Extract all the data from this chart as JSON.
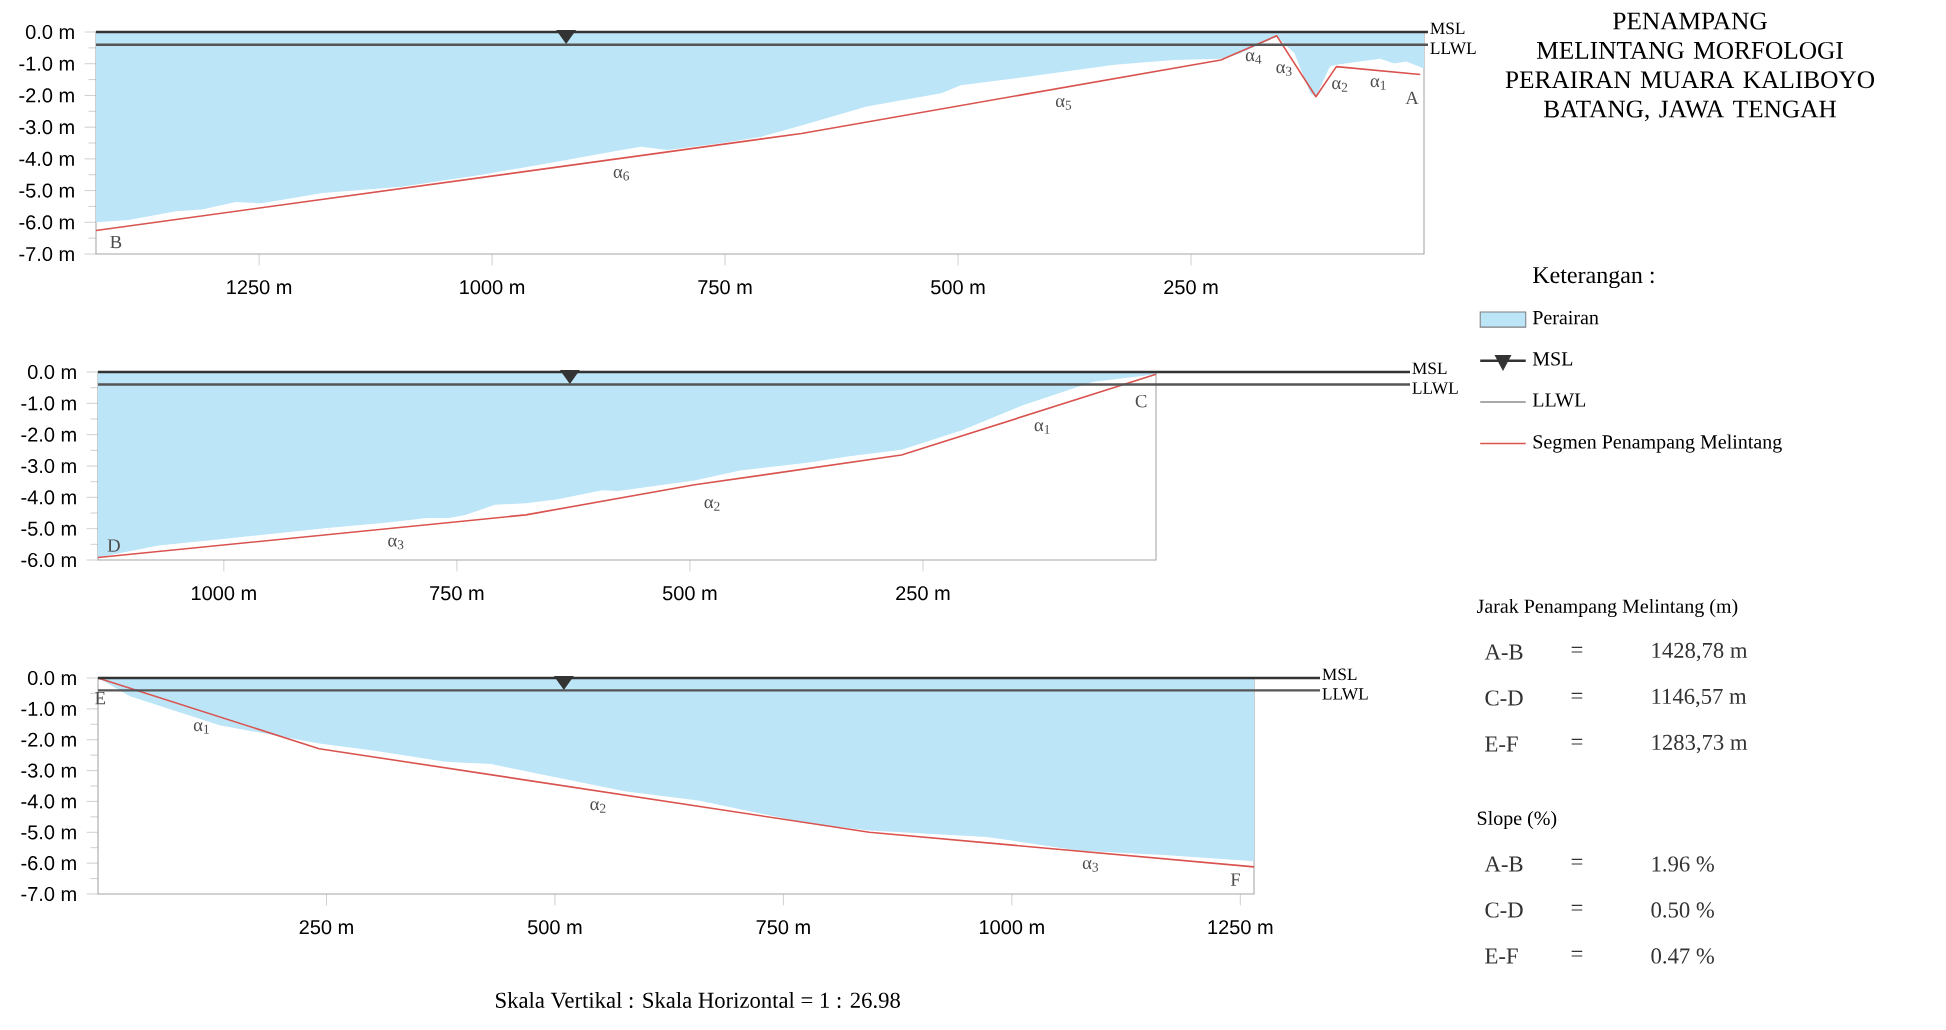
{
  "chart_data": [
    {
      "type": "area",
      "xlim": [
        1425,
        0
      ],
      "ylim": [
        -7,
        0
      ],
      "xticks": [
        {
          "value": 1250,
          "label": "1250 m"
        },
        {
          "value": 1000,
          "label": "1000 m"
        },
        {
          "value": 750,
          "label": "750 m"
        },
        {
          "value": 500,
          "label": "500 m"
        },
        {
          "value": 250,
          "label": "250 m"
        }
      ],
      "yticks": [
        {
          "value": 0,
          "label": "0.0 m"
        },
        {
          "value": -1,
          "label": "-1.0 m"
        },
        {
          "value": -2,
          "label": "-2.0 m"
        },
        {
          "value": -3,
          "label": "-3.0 m"
        },
        {
          "value": -4,
          "label": "-4.0 m"
        },
        {
          "value": -5,
          "label": "-5.0 m"
        },
        {
          "value": -6,
          "label": "-6.0 m"
        },
        {
          "value": -7,
          "label": "-7.0 m"
        }
      ],
      "legend": "right",
      "legend_title": "Keterangan :",
      "series": [
        {
          "name": "Perairan",
          "color": "#bde5f8",
          "x": [
            1425,
            1390,
            1339,
            1311,
            1275,
            1247,
            1182,
            1097,
            1011,
            932,
            861,
            840,
            812,
            754,
            711,
            668,
            598,
            518,
            497,
            426,
            332,
            268,
            218,
            197,
            158,
            139,
            122,
            116,
            101,
            94,
            69,
            47,
            32,
            19,
            0
          ],
          "values": [
            -6.0,
            -5.93,
            -5.65,
            -5.6,
            -5.36,
            -5.4,
            -5.08,
            -4.88,
            -4.5,
            -4.1,
            -3.72,
            -3.62,
            -3.72,
            -3.51,
            -3.3,
            -2.95,
            -2.35,
            -1.93,
            -1.68,
            -1.41,
            -1.03,
            -0.88,
            -0.84,
            -0.67,
            -0.15,
            -0.67,
            -1.93,
            -2.04,
            -1.09,
            -1.03,
            -0.93,
            -0.84,
            -0.99,
            -0.93,
            -1.15
          ]
        },
        {
          "name": "Segmen Penampang Melintang",
          "type": "line",
          "color": "#d9534f",
          "x": [
            1425,
            668,
            218,
            158,
            116,
            94,
            4
          ],
          "values": [
            -6.26,
            -3.2,
            -0.88,
            -0.12,
            -2.04,
            -1.09,
            -1.34
          ]
        }
      ],
      "ref_lines": [
        {
          "axis": "y",
          "value": 0,
          "label": "MSL",
          "color": "#333333"
        },
        {
          "axis": "y",
          "value": -0.4,
          "label": "LLWL",
          "color": "#555555"
        }
      ],
      "annotations": [
        "α$_{6}$",
        "α$_{5}$",
        "α$_{4}$",
        "α$_{3}$",
        "α$_{2}$",
        "α$_{1}$",
        "A",
        "B"
      ]
    },
    {
      "type": "area",
      "xlim": [
        1135,
        0
      ],
      "ylim": [
        -6,
        0
      ],
      "xticks": [
        {
          "value": 1000,
          "label": "1000 m"
        },
        {
          "value": 750,
          "label": "750 m"
        },
        {
          "value": 500,
          "label": "500 m"
        },
        {
          "value": 250,
          "label": "250 m"
        }
      ],
      "yticks": [
        {
          "value": 0,
          "label": "0.0 m"
        },
        {
          "value": -1,
          "label": "-1.0 m"
        },
        {
          "value": -2,
          "label": "-2.0 m"
        },
        {
          "value": -3,
          "label": "-3.0 m"
        },
        {
          "value": -4,
          "label": "-4.0 m"
        },
        {
          "value": -5,
          "label": "-5.0 m"
        },
        {
          "value": -6,
          "label": "-6.0 m"
        }
      ],
      "series": [
        {
          "color": "#bde5f8",
          "x": [
            1135,
            1070,
            988,
            889,
            824,
            782,
            758,
            741,
            709,
            676,
            643,
            594,
            577,
            536,
            495,
            446,
            372,
            331,
            273,
            208,
            142,
            68,
            0
          ],
          "values": [
            -5.92,
            -5.54,
            -5.29,
            -4.98,
            -4.8,
            -4.66,
            -4.66,
            -4.56,
            -4.24,
            -4.19,
            -4.07,
            -3.77,
            -3.8,
            -3.63,
            -3.46,
            -3.14,
            -2.89,
            -2.7,
            -2.48,
            -1.86,
            -1.05,
            -0.32,
            -0.07
          ]
        },
        {
          "type": "line",
          "color": "#d9534f",
          "x": [
            1135,
            676,
            495,
            273,
            0
          ],
          "values": [
            -5.92,
            -4.56,
            -3.6,
            -2.65,
            -0.07
          ]
        }
      ],
      "ref_lines": [
        {
          "axis": "y",
          "value": 0,
          "label": "MSL",
          "color": "#333333"
        },
        {
          "axis": "y",
          "value": -0.4,
          "label": "LLWL",
          "color": "#555555"
        }
      ],
      "annotations": [
        "α$_{1}$",
        "α$_{2}$",
        "α$_{3}$",
        "C",
        "D"
      ]
    },
    {
      "type": "area",
      "xlim": [
        0,
        1265
      ],
      "ylim": [
        -7,
        0
      ],
      "xticks": [
        {
          "value": 250,
          "label": "250 m"
        },
        {
          "value": 500,
          "label": "500 m"
        },
        {
          "value": 750,
          "label": "750 m"
        },
        {
          "value": 1000,
          "label": "1000 m"
        },
        {
          "value": 1250,
          "label": "1250 m"
        }
      ],
      "yticks": [
        {
          "value": 0,
          "label": "0.0 m"
        },
        {
          "value": -1,
          "label": "-1.0 m"
        },
        {
          "value": -2,
          "label": "-2.0 m"
        },
        {
          "value": -3,
          "label": "-3.0 m"
        },
        {
          "value": -4,
          "label": "-4.0 m"
        },
        {
          "value": -5,
          "label": "-5.0 m"
        },
        {
          "value": -6,
          "label": "-6.0 m"
        },
        {
          "value": -7,
          "label": "-7.0 m"
        }
      ],
      "series": [
        {
          "color": "#bde5f8",
          "x": [
            0,
            35,
            133,
            242,
            301,
            380,
            430,
            479,
            578,
            657,
            776,
            844,
            973,
            1072,
            1171,
            1265
          ],
          "values": [
            0,
            -0.59,
            -1.53,
            -2.12,
            -2.35,
            -2.71,
            -2.79,
            -3.09,
            -3.68,
            -3.97,
            -4.71,
            -4.94,
            -5.15,
            -5.59,
            -5.74,
            -5.94
          ]
        },
        {
          "type": "line",
          "color": "#d9534f",
          "x": [
            0,
            242,
            844,
            1265
          ],
          "values": [
            0,
            -2.29,
            -5.0,
            -6.12
          ]
        }
      ],
      "ref_lines": [
        {
          "axis": "y",
          "value": 0,
          "label": "MSL",
          "color": "#333333"
        },
        {
          "axis": "y",
          "value": -0.4,
          "label": "LLWL",
          "color": "#555555"
        }
      ],
      "annotations": [
        "α$_{1}$",
        "α$_{2}$",
        "α$_{3}$",
        "E",
        "F"
      ]
    },
    {
      "type": "other",
      "title": "PENAMPANG MELINTANG MORFOLOGI",
      "subtitle": "PERAIRAN MUARA KALIBOYO BATANG, JAWA TENGAH",
      "annotations": [
        "Jarak Penampang Melintang (m)",
        "A-B",
        "=",
        "1428,78 m",
        "C-D",
        "=",
        "1146,57 m",
        "E-F",
        "=",
        "1283,73 m",
        "Slope (%)",
        "A-B",
        "=",
        "1.96 %",
        "C-D",
        "=",
        "0.50 %",
        "E-F",
        "=",
        "0.47 %",
        "Skala Vertikal : Skala Horizontal = 1 : 26.98"
      ]
    }
  ]
}
